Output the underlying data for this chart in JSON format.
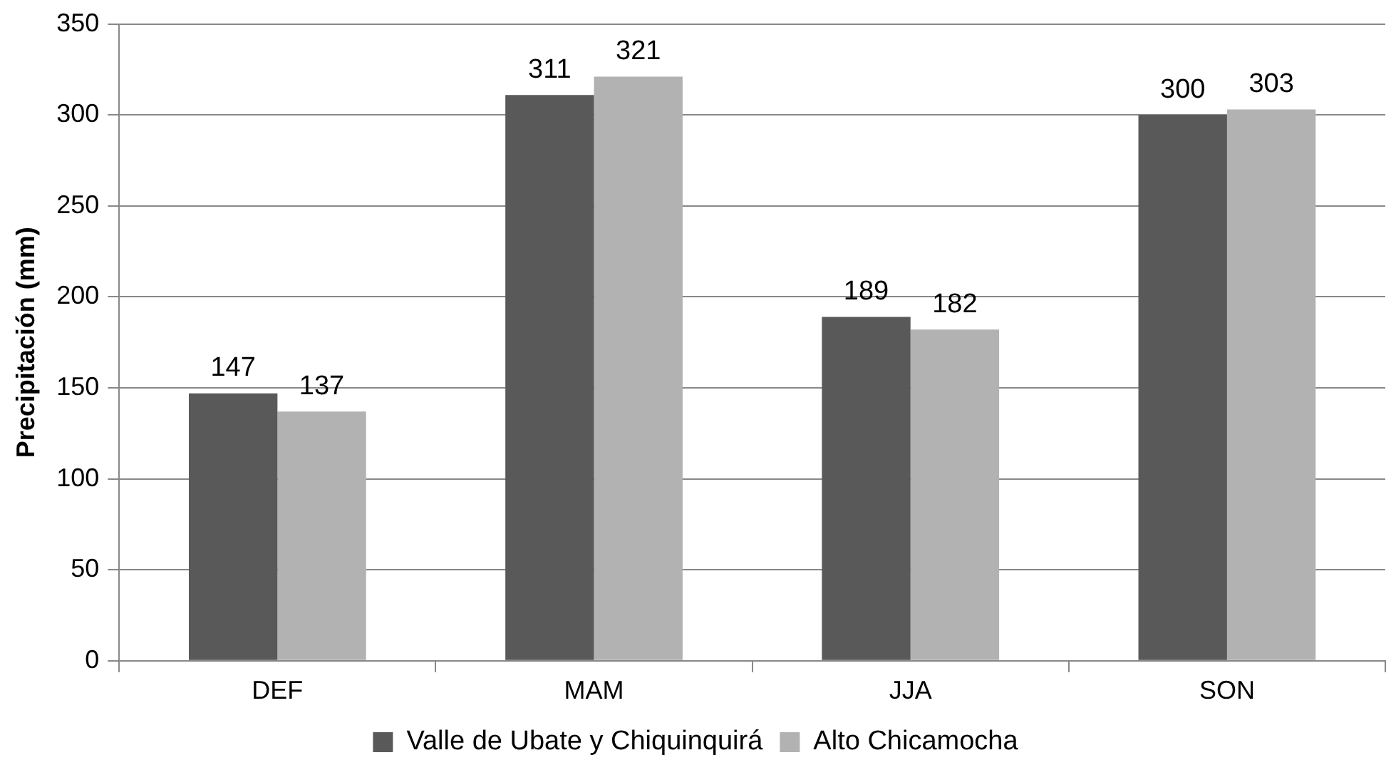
{
  "chart_data": {
    "type": "bar",
    "ylabel": "Precipitación (mm)",
    "categories": [
      "DEF",
      "MAM",
      "JJA",
      "SON"
    ],
    "series": [
      {
        "name": "Valle de Ubate y Chiquinquirá",
        "color": "#595959",
        "values": [
          147,
          311,
          189,
          300
        ]
      },
      {
        "name": "Alto Chicamocha",
        "color": "#b2b2b2",
        "values": [
          137,
          321,
          182,
          303
        ]
      }
    ],
    "ylim": [
      0,
      350
    ],
    "yticks": [
      0,
      50,
      100,
      150,
      200,
      250,
      300,
      350
    ],
    "grid": "y",
    "legend": "bottom",
    "data_labels": true
  }
}
